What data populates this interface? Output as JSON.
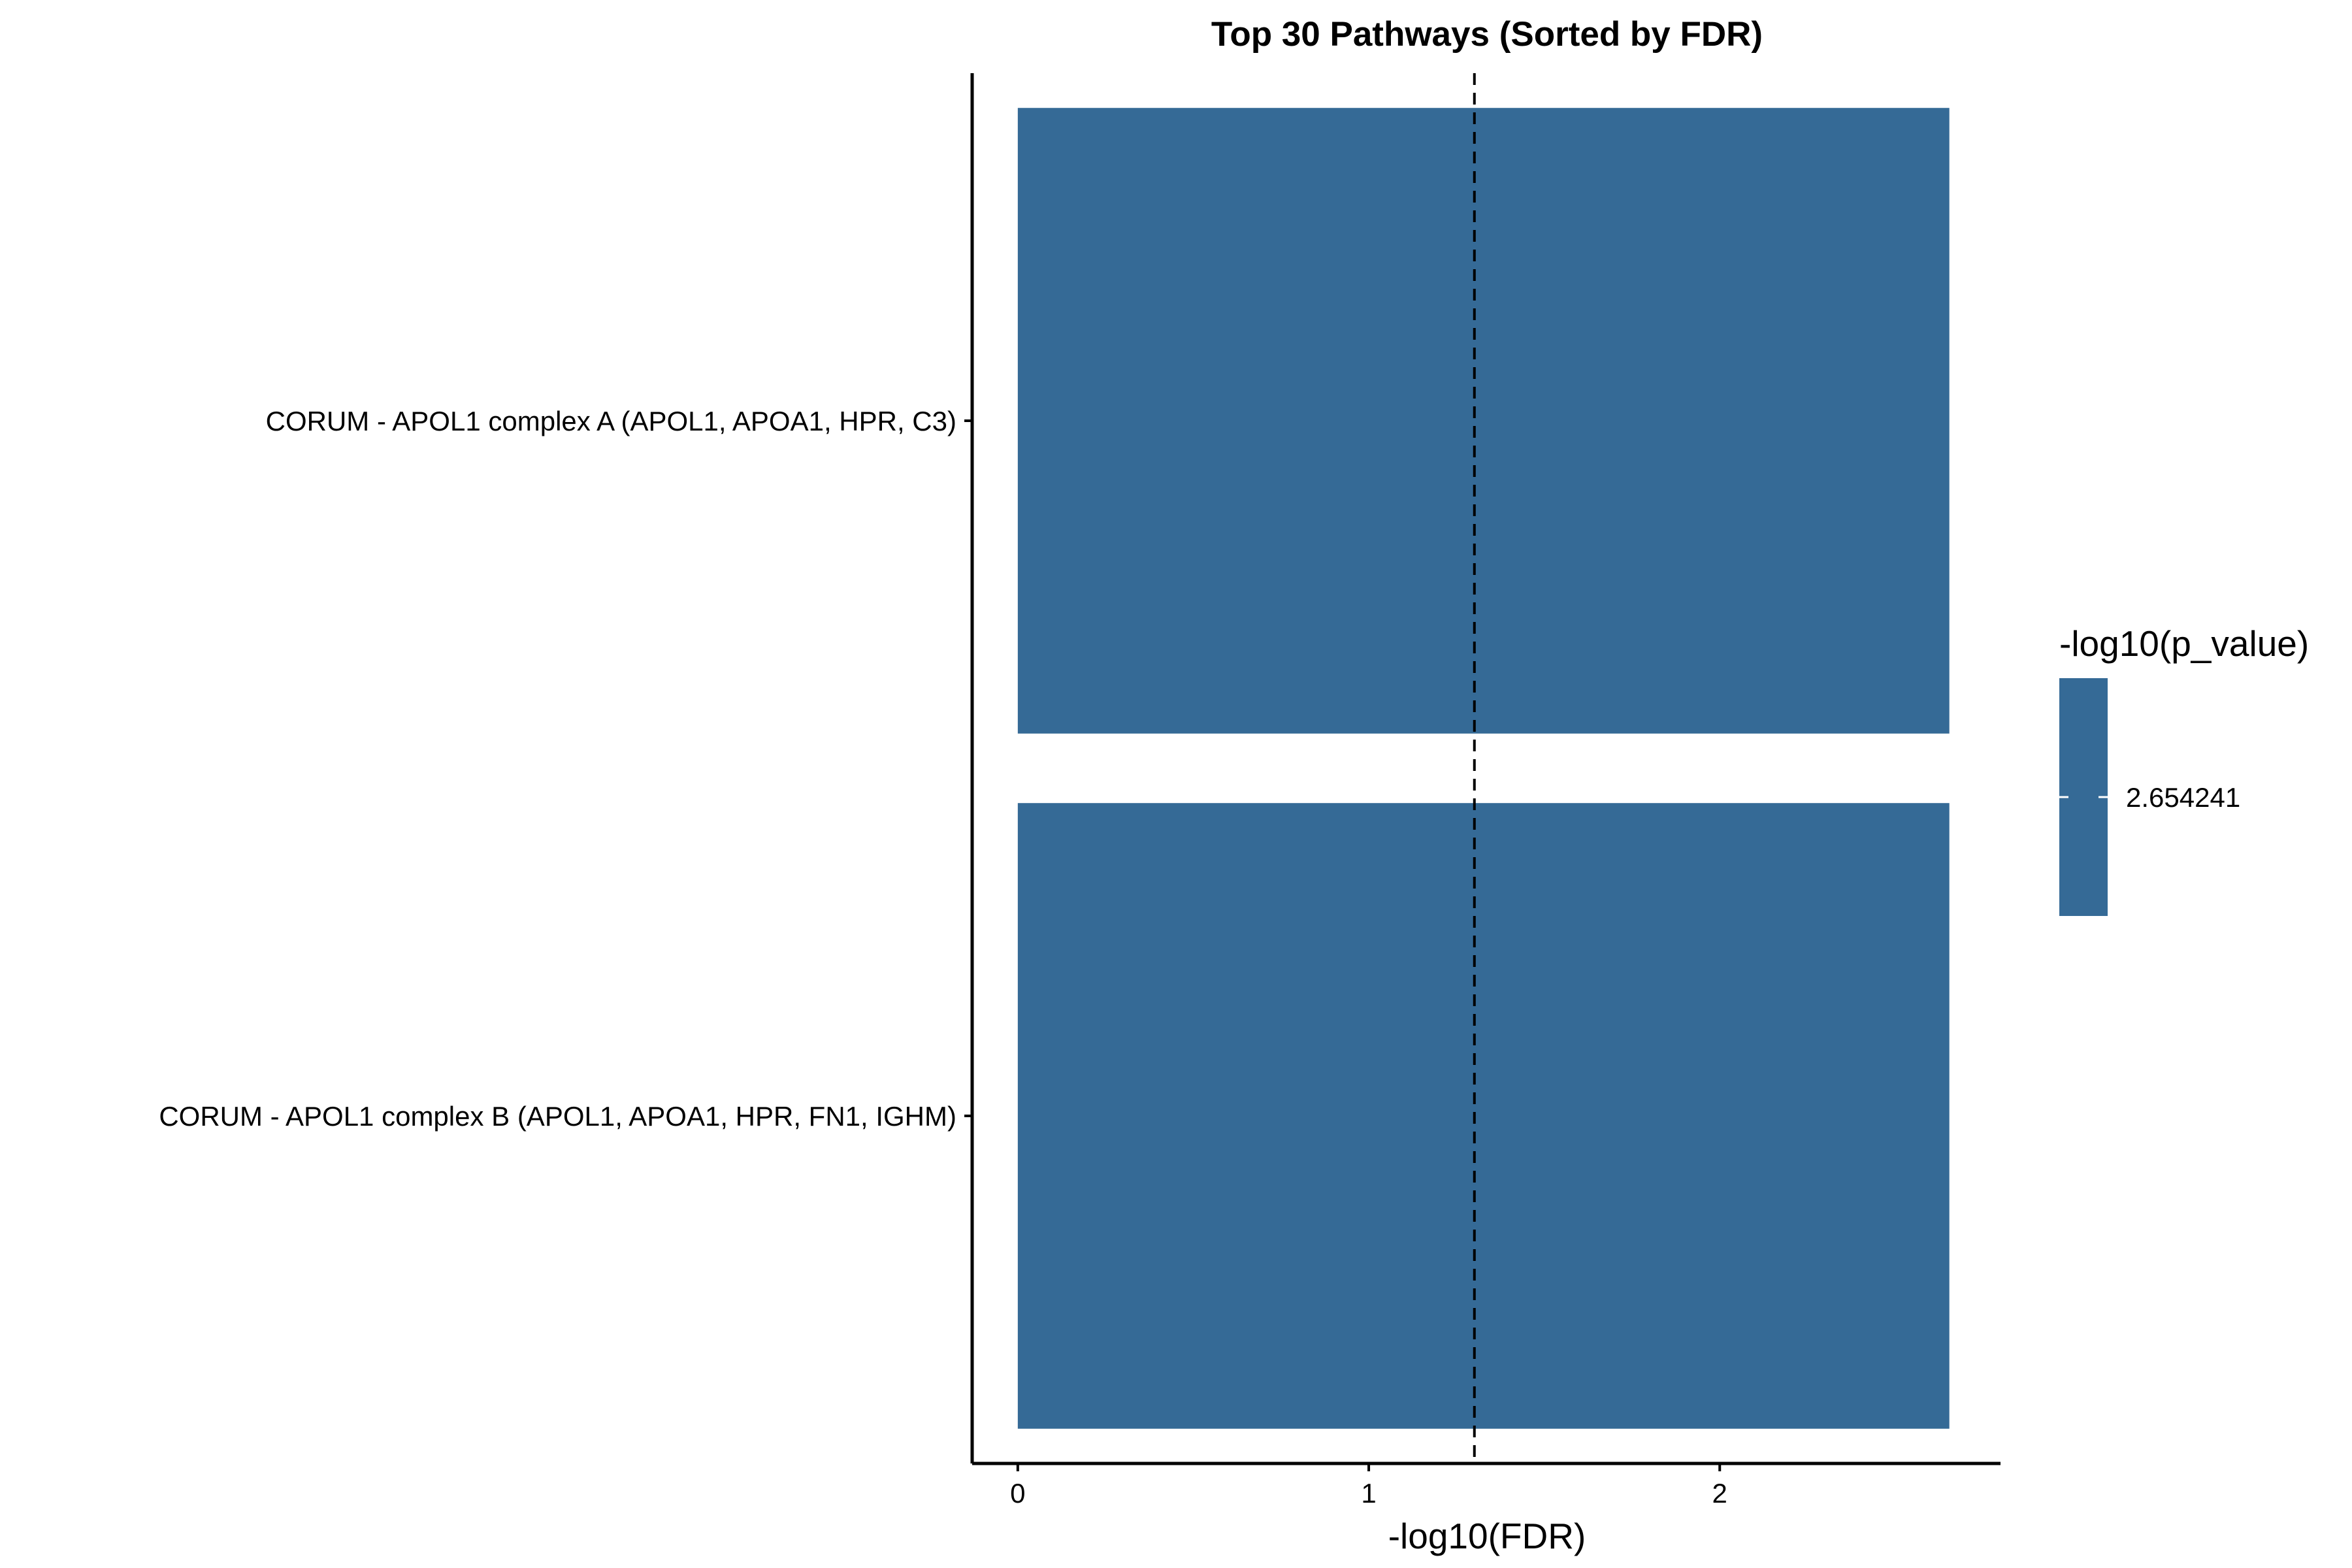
{
  "colors": {
    "bar_fill": "#356a96",
    "axis": "#000000",
    "reference_line": "#000000",
    "background": "#ffffff"
  },
  "chart_data": {
    "type": "bar",
    "orientation": "horizontal",
    "title": "Top 30 Pathways (Sorted by FDR)",
    "xlabel": "-log10(FDR)",
    "ylabel": "",
    "xlim": [
      -0.13,
      2.8
    ],
    "x_ticks": [
      "0",
      "1",
      "2"
    ],
    "x_tick_values": [
      0,
      1,
      2
    ],
    "categories": [
      "CORUM - APOL1 complex A (APOL1, APOA1, HPR, C3)",
      "CORUM - APOL1 complex B (APOL1, APOA1, HPR, FN1, IGHM)"
    ],
    "values": [
      2.654241,
      2.654241
    ],
    "reference_line": {
      "value": 1.30103,
      "style": "dashed"
    },
    "legend": {
      "title": "-log10(p_value)",
      "labels": [
        "2.654241"
      ],
      "placement": "right"
    },
    "grid": false
  }
}
